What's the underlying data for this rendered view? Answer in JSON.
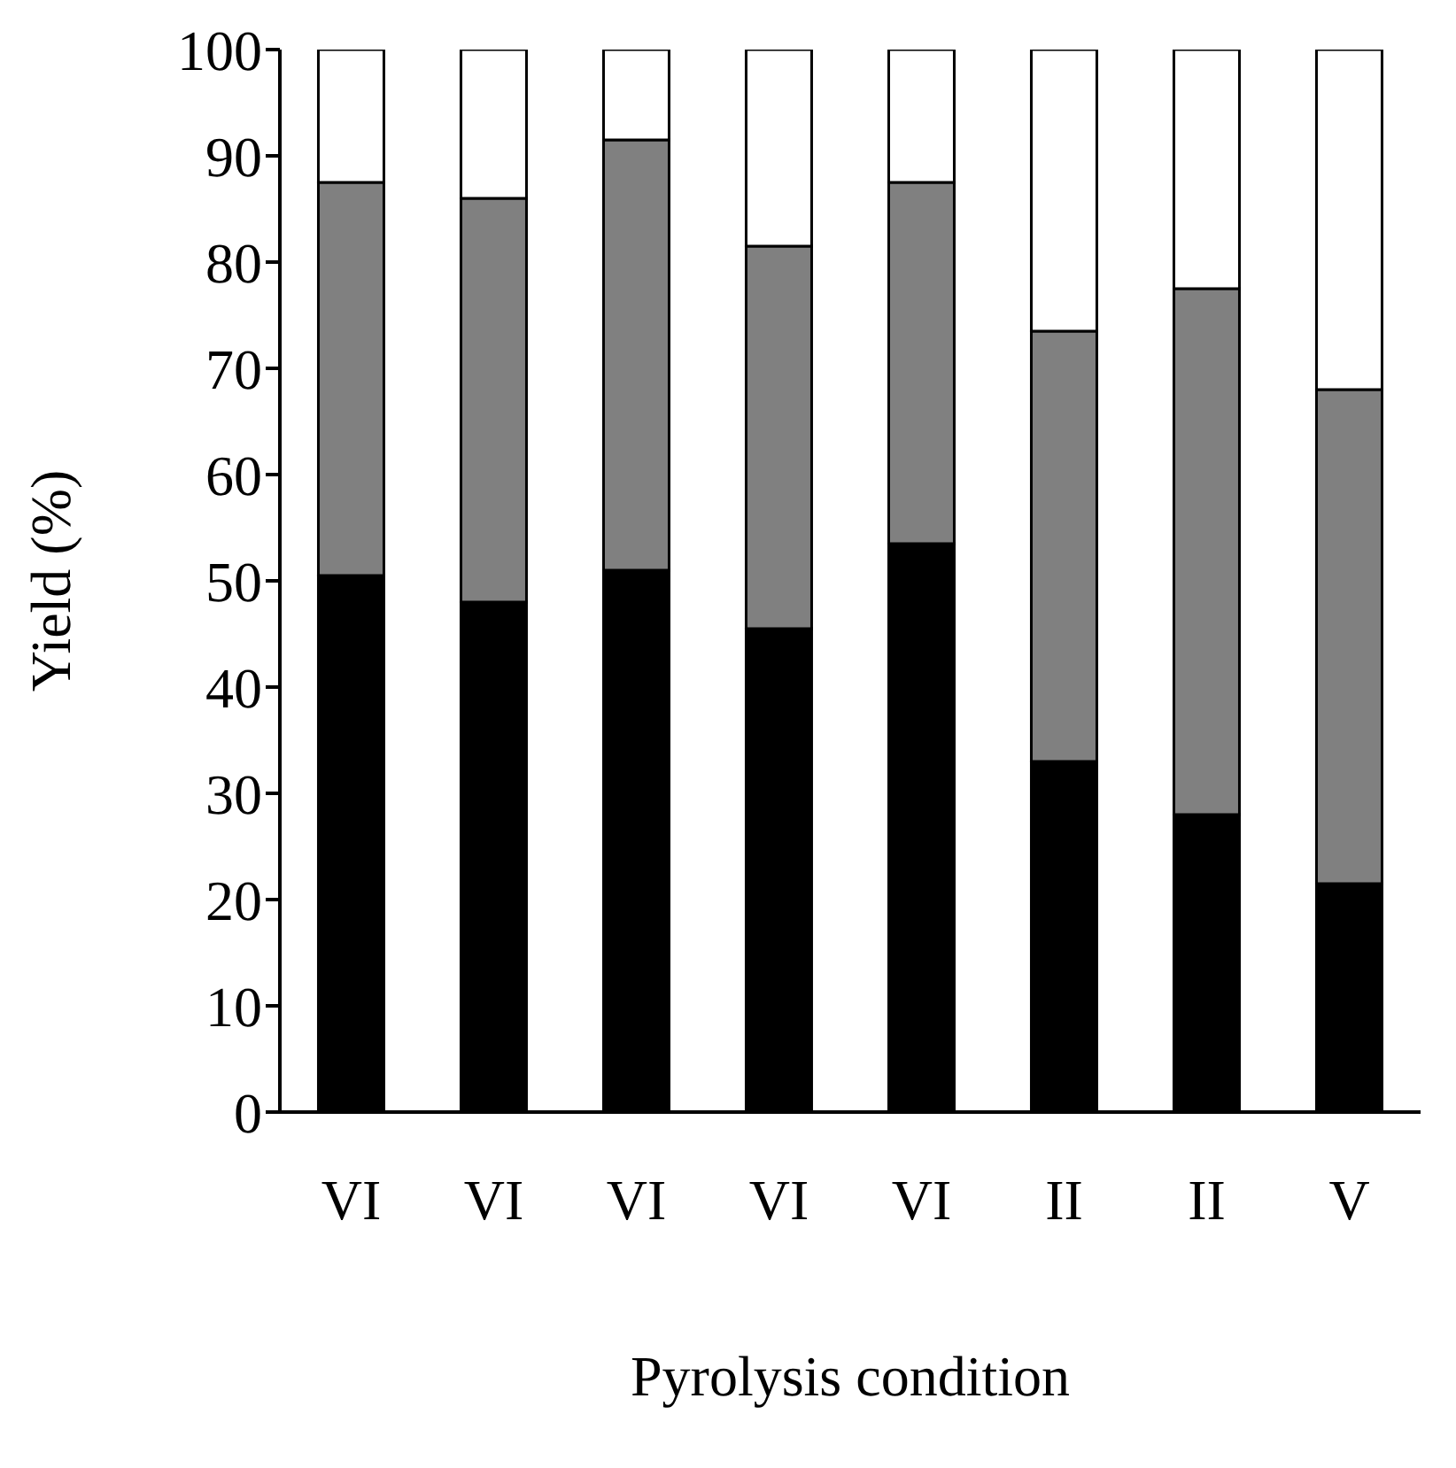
{
  "chart_data": {
    "type": "bar",
    "stacked": true,
    "xlabel": "Pyrolysis condition",
    "ylabel": "Yield (%)",
    "categories": [
      "VI",
      "VI",
      "VI",
      "VI",
      "VI",
      "II",
      "II",
      "V"
    ],
    "series": [
      {
        "color": "#000000",
        "values": [
          50.5,
          48,
          51,
          45.5,
          53.5,
          33,
          28,
          21.5
        ]
      },
      {
        "color": "#808080",
        "values": [
          37,
          38,
          40.5,
          36,
          34,
          40.5,
          49.5,
          46.5
        ]
      },
      {
        "color": "#ffffff",
        "values": [
          12.5,
          14,
          8.5,
          18.5,
          12.5,
          26.5,
          22.5,
          32
        ]
      }
    ],
    "ylim": [
      0,
      100
    ],
    "yticks": [
      0,
      10,
      20,
      30,
      40,
      50,
      60,
      70,
      80,
      90,
      100
    ]
  }
}
